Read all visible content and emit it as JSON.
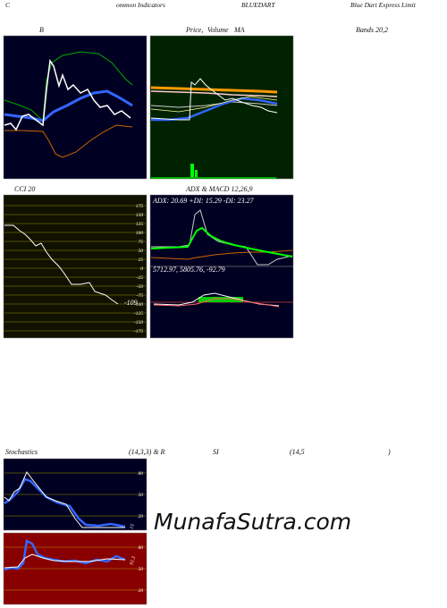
{
  "header": {
    "c": "C",
    "common": "ommon Indicators",
    "symbol": "BLUEDART",
    "company": "Blue  Dart Express Limit"
  },
  "row2": {
    "b": "B",
    "price": "Price,",
    "volume": "Volume",
    "ma": "MA",
    "bands": "Bands 20,2"
  },
  "cci": {
    "title": "CCI 20",
    "ticks": [
      175,
      150,
      125,
      100,
      75,
      50,
      25,
      0,
      -25,
      -50,
      -75,
      -100,
      -125,
      -150,
      -175
    ],
    "value": "-109"
  },
  "adx": {
    "title": "ADX  & MACD 12,26,9",
    "readout": "ADX: 20.69  +DI: 15.29 -DI: 23.27"
  },
  "macd": {
    "readout": "5712.97,  5805.76,  -92.79"
  },
  "stoch": {
    "title": "Stochastics",
    "params": "(14,3,3) & R",
    "si": "SI",
    "rsi_params": "(14,5",
    "close": ")",
    "ticks": [
      80,
      50,
      20
    ],
    "value": "15"
  },
  "rsi": {
    "ticks": [
      80,
      50,
      20
    ],
    "value": "61.3"
  },
  "watermark": "MunafaSutra.com"
}
